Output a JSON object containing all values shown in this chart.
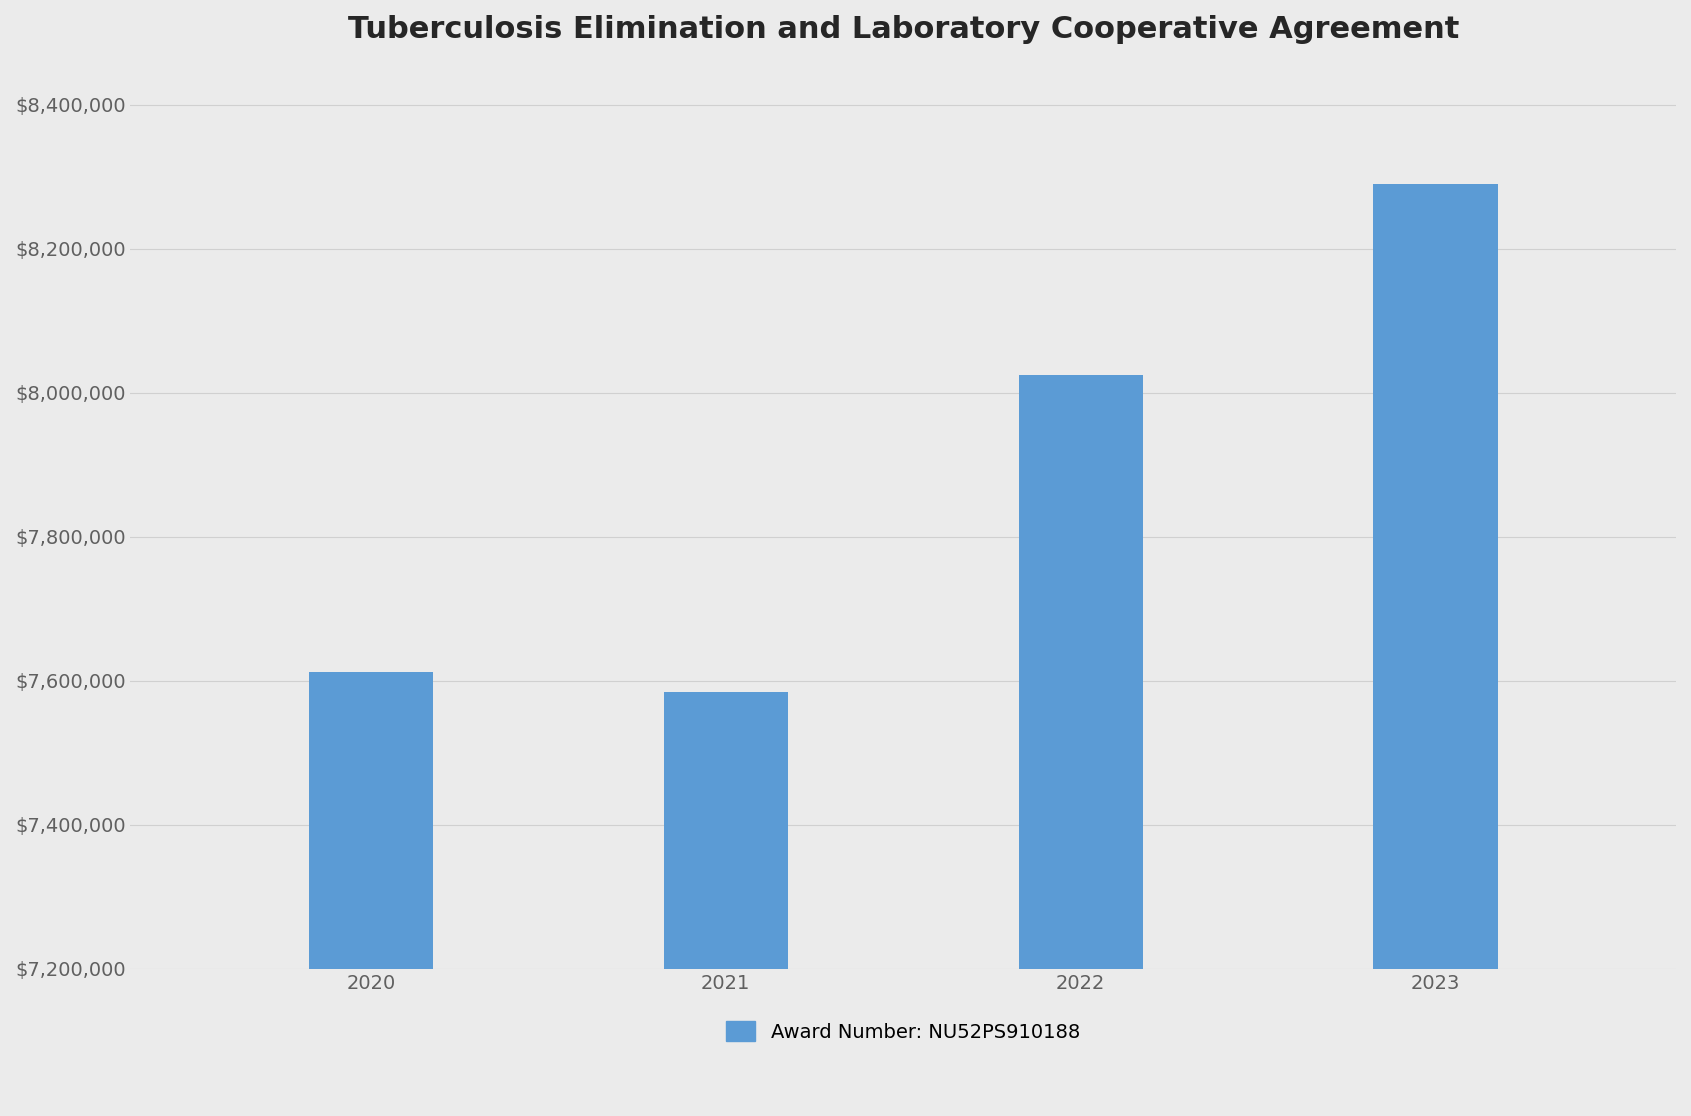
{
  "title": "Tuberculosis Elimination and Laboratory Cooperative Agreement",
  "categories": [
    "2020",
    "2021",
    "2022",
    "2023"
  ],
  "values": [
    7612000,
    7585000,
    8025000,
    8290000
  ],
  "bar_color": "#5B9BD5",
  "background_color": "#EBEBEB",
  "plot_background_color": "#EBEBEB",
  "ylim_min": 7200000,
  "ylim_max": 8450000,
  "ytick_step": 200000,
  "legend_label": "Award Number: NU52PS910188",
  "title_fontsize": 22,
  "tick_fontsize": 14,
  "legend_fontsize": 14,
  "grid_color": "#D0D0D0",
  "bar_width": 0.35
}
